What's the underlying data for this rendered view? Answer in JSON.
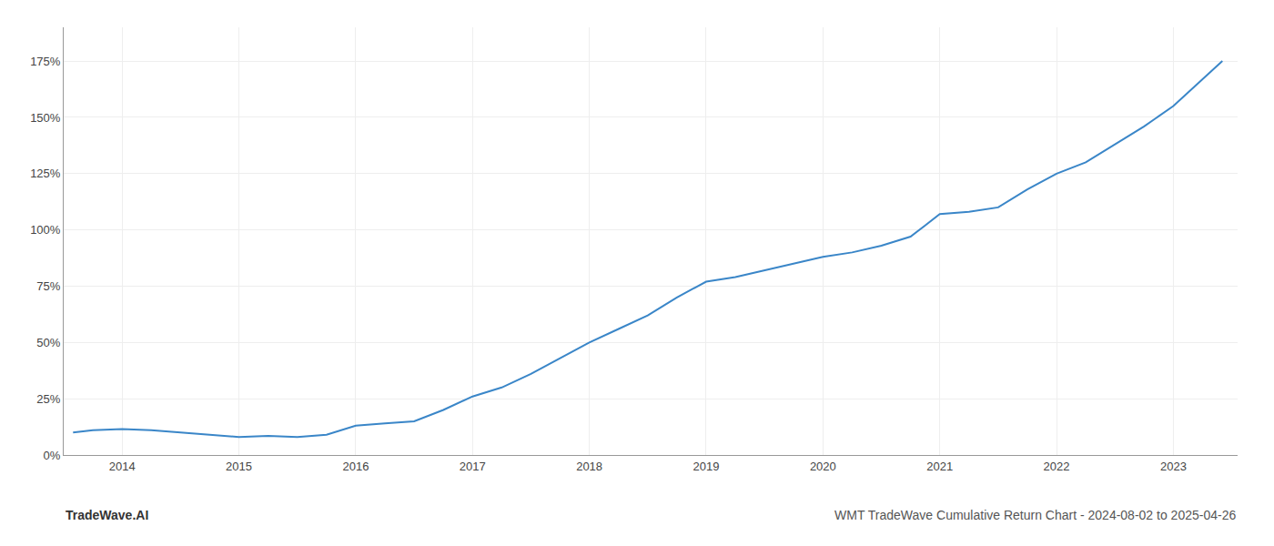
{
  "chart_data": {
    "type": "line",
    "title": "WMT TradeWave Cumulative Return Chart - 2024-08-02 to 2025-04-26",
    "annotations": [
      "TradeWave.AI"
    ],
    "x": [
      2013.58,
      2013.75,
      2014.0,
      2014.25,
      2014.5,
      2014.75,
      2015.0,
      2015.25,
      2015.5,
      2015.75,
      2016.0,
      2016.25,
      2016.5,
      2016.75,
      2017.0,
      2017.25,
      2017.5,
      2017.75,
      2018.0,
      2018.25,
      2018.5,
      2018.75,
      2019.0,
      2019.25,
      2019.5,
      2019.75,
      2020.0,
      2020.25,
      2020.5,
      2020.75,
      2021.0,
      2021.25,
      2021.5,
      2021.75,
      2022.0,
      2022.25,
      2022.5,
      2022.75,
      2023.0,
      2023.25,
      2023.42
    ],
    "values": [
      10,
      11,
      11.5,
      11,
      10,
      9,
      8,
      8.5,
      8,
      9,
      13,
      14,
      15,
      20,
      26,
      30,
      36,
      43,
      50,
      56,
      62,
      70,
      77,
      79,
      82,
      85,
      88,
      90,
      93,
      97,
      107,
      108,
      110,
      118,
      125,
      130,
      138,
      146,
      155,
      167,
      175
    ],
    "color": "#3a86c8",
    "xlim": [
      2013.5,
      2023.55
    ],
    "xticks": [
      2014,
      2015,
      2016,
      2017,
      2018,
      2019,
      2020,
      2021,
      2022,
      2023
    ],
    "ylim": [
      0,
      190
    ],
    "yticks": [
      {
        "value": 0,
        "label": "0%"
      },
      {
        "value": 25,
        "label": "25%"
      },
      {
        "value": 50,
        "label": "50%"
      },
      {
        "value": 75,
        "label": "75%"
      },
      {
        "value": 100,
        "label": "100%"
      },
      {
        "value": 125,
        "label": "125%"
      },
      {
        "value": 150,
        "label": "150%"
      },
      {
        "value": 175,
        "label": "175%"
      }
    ],
    "grid": true
  }
}
